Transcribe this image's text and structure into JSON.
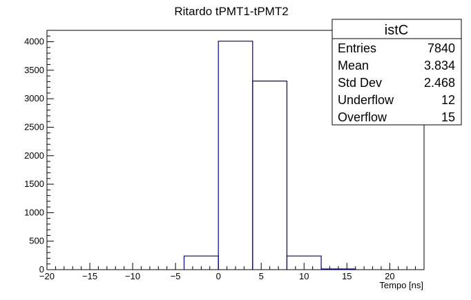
{
  "chart_data": {
    "type": "bar",
    "title": "Ritardo tPMT1-tPMT2",
    "xlabel": "Tempo [ns]",
    "ylabel": "",
    "xlim": [
      -20,
      24
    ],
    "ylim": [
      0,
      4200
    ],
    "grid": false,
    "line_color": "#000080",
    "bins": [
      {
        "x0": -4,
        "x1": 0,
        "value": 240
      },
      {
        "x0": 0,
        "x1": 4,
        "value": 4010
      },
      {
        "x0": 4,
        "x1": 8,
        "value": 3310
      },
      {
        "x0": 8,
        "x1": 12,
        "value": 240
      },
      {
        "x0": 12,
        "x1": 16,
        "value": 12
      }
    ],
    "xticks": [
      -20,
      -15,
      -10,
      -5,
      0,
      5,
      10,
      15,
      20
    ],
    "xtick_labels": [
      "−20",
      "−15",
      "−10",
      "−5",
      "0",
      "5",
      "10",
      "15",
      "20"
    ],
    "yticks": [
      0,
      500,
      1000,
      1500,
      2000,
      2500,
      3000,
      3500,
      4000
    ],
    "ytick_labels": [
      "0",
      "500",
      "1000",
      "1500",
      "2000",
      "2500",
      "3000",
      "3500",
      "4000"
    ],
    "stats": {
      "name": "istC",
      "rows": [
        {
          "label": "Entries",
          "value": "7840"
        },
        {
          "label": "Mean",
          "value": "3.834"
        },
        {
          "label": "Std Dev",
          "value": "2.468"
        },
        {
          "label": "Underflow",
          "value": "12"
        },
        {
          "label": "Overflow",
          "value": "15"
        }
      ]
    }
  }
}
